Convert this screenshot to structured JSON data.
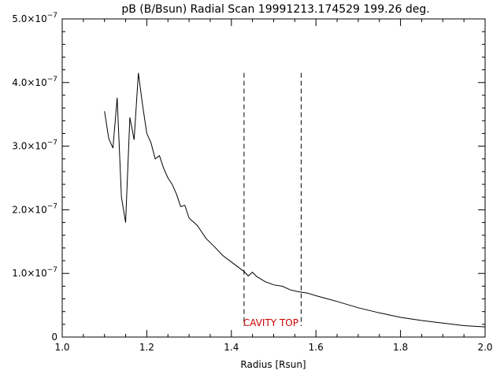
{
  "chart_data": {
    "type": "line",
    "title": "pB (B/Bsun) Radial Scan 19991213.174529 199.26 deg.",
    "xlabel": "Radius [Rsun]",
    "ylabel": "",
    "xlim": [
      1.0,
      2.0
    ],
    "ylim": [
      0,
      5e-07
    ],
    "x_ticks": [
      {
        "value": 1.0,
        "label": "1.0"
      },
      {
        "value": 1.2,
        "label": "1.2"
      },
      {
        "value": 1.4,
        "label": "1.4"
      },
      {
        "value": 1.6,
        "label": "1.6"
      },
      {
        "value": 1.8,
        "label": "1.8"
      },
      {
        "value": 2.0,
        "label": "2.0"
      }
    ],
    "y_ticks": [
      {
        "value": 0,
        "mantissa": "0",
        "exponent": ""
      },
      {
        "value": 1e-07,
        "mantissa": "1.0×10",
        "exponent": "−7"
      },
      {
        "value": 2e-07,
        "mantissa": "2.0×10",
        "exponent": "−7"
      },
      {
        "value": 3e-07,
        "mantissa": "3.0×10",
        "exponent": "−7"
      },
      {
        "value": 4e-07,
        "mantissa": "4.0×10",
        "exponent": "−7"
      },
      {
        "value": 5e-07,
        "mantissa": "5.0×10",
        "exponent": "−7"
      }
    ],
    "series": [
      {
        "x": [
          1.1,
          1.11,
          1.12,
          1.13,
          1.14,
          1.15,
          1.16,
          1.17,
          1.18,
          1.19,
          1.2,
          1.21,
          1.22,
          1.23,
          1.24,
          1.25,
          1.26,
          1.27,
          1.28,
          1.29,
          1.3,
          1.32,
          1.34,
          1.36,
          1.38,
          1.4,
          1.42,
          1.43,
          1.44,
          1.45,
          1.46,
          1.48,
          1.5,
          1.52,
          1.54,
          1.56,
          1.58,
          1.6,
          1.65,
          1.7,
          1.75,
          1.8,
          1.85,
          1.9,
          1.95,
          2.0
        ],
        "y": [
          3.55e-07,
          3.12e-07,
          2.97e-07,
          3.76e-07,
          2.2e-07,
          1.8e-07,
          3.45e-07,
          3.1e-07,
          4.15e-07,
          3.65e-07,
          3.2e-07,
          3.05e-07,
          2.8e-07,
          2.85e-07,
          2.65e-07,
          2.5e-07,
          2.4e-07,
          2.25e-07,
          2.05e-07,
          2.07e-07,
          1.87e-07,
          1.75e-07,
          1.55e-07,
          1.42e-07,
          1.28e-07,
          1.18e-07,
          1.08e-07,
          1.03e-07,
          9.6e-08,
          1.02e-07,
          9.5e-08,
          8.7e-08,
          8.2e-08,
          8e-08,
          7.4e-08,
          7.1e-08,
          6.9e-08,
          6.5e-08,
          5.6e-08,
          4.6e-08,
          3.8e-08,
          3.1e-08,
          2.6e-08,
          2.2e-08,
          1.8e-08,
          1.6e-08
        ]
      }
    ],
    "vlines": [
      {
        "x": 1.43,
        "y_top": 4.15e-07
      },
      {
        "x": 1.565,
        "y_top": 4.15e-07
      }
    ],
    "annotation": {
      "text": "CAVITY TOP",
      "x": 1.43,
      "y": 2.2e-08
    },
    "grid": false,
    "legend": "none"
  }
}
